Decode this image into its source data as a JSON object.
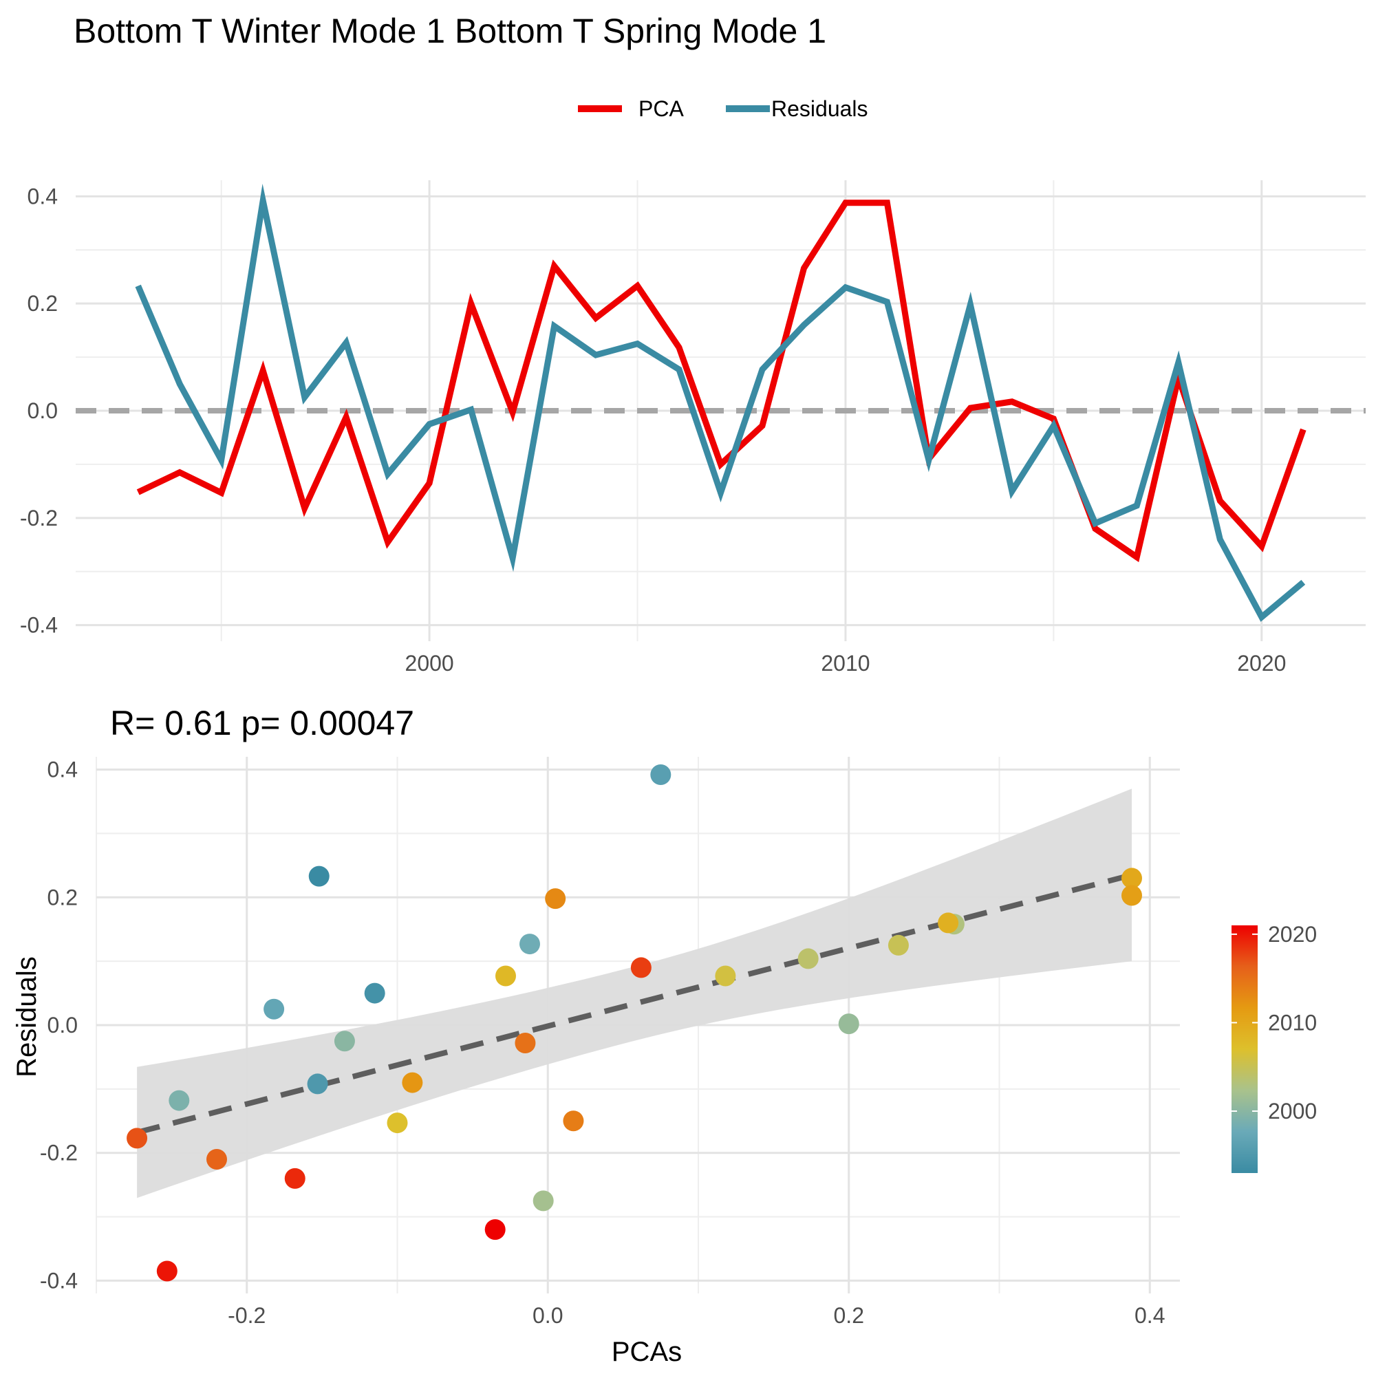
{
  "figure": {
    "title": "Bottom T Winter Mode 1 Bottom T Spring Mode 1"
  },
  "chart_data": [
    {
      "type": "line",
      "legend": {
        "position": "top",
        "entries": [
          "PCA",
          "Residuals"
        ]
      },
      "colors": {
        "PCA": "#ee0000",
        "Residuals": "#3a8ba3",
        "zero_line": "#a6a6a6"
      },
      "grid": true,
      "xlim": [
        1991.5,
        2022.5
      ],
      "ylim": [
        -0.43,
        0.43
      ],
      "x_ticks": [
        2000,
        2010,
        2020
      ],
      "x_tick_labels": [
        "2000",
        "2010",
        "2020"
      ],
      "y_ticks": [
        -0.4,
        -0.2,
        0.0,
        0.2,
        0.4
      ],
      "y_tick_labels": [
        "-0.4",
        "-0.2",
        "0.0",
        "0.2",
        "0.4"
      ],
      "hline": 0,
      "x": [
        1993,
        1994,
        1995,
        1996,
        1997,
        1998,
        1999,
        2000,
        2001,
        2002,
        2003,
        2004,
        2005,
        2006,
        2007,
        2008,
        2009,
        2010,
        2011,
        2012,
        2013,
        2014,
        2015,
        2016,
        2017,
        2018,
        2019,
        2020,
        2021
      ],
      "series": [
        {
          "name": "PCA",
          "values": [
            -0.152,
            -0.115,
            -0.153,
            0.075,
            -0.182,
            -0.012,
            -0.245,
            -0.135,
            0.2,
            -0.003,
            0.27,
            0.173,
            0.233,
            0.118,
            -0.1,
            -0.028,
            0.266,
            0.388,
            0.388,
            -0.09,
            0.005,
            0.017,
            -0.015,
            -0.22,
            -0.273,
            0.062,
            -0.168,
            -0.253,
            -0.035
          ]
        },
        {
          "name": "Residuals",
          "values": [
            0.233,
            0.05,
            -0.092,
            0.392,
            0.025,
            0.127,
            -0.118,
            -0.025,
            0.002,
            -0.275,
            0.158,
            0.104,
            0.125,
            0.077,
            -0.153,
            0.077,
            0.16,
            0.23,
            0.203,
            -0.092,
            0.198,
            -0.15,
            -0.028,
            -0.21,
            -0.177,
            0.09,
            -0.24,
            -0.385,
            -0.32
          ]
        }
      ]
    },
    {
      "type": "scatter",
      "subtitle": "R= 0.61  p= 0.00047",
      "xlabel": "PCAs",
      "ylabel": "Residuals",
      "grid": true,
      "xlim": [
        -0.3,
        0.42
      ],
      "ylim": [
        -0.42,
        0.42
      ],
      "x_ticks": [
        -0.2,
        0.0,
        0.2,
        0.4
      ],
      "x_tick_labels": [
        "-0.2",
        "0.0",
        "0.2",
        "0.4"
      ],
      "y_ticks": [
        -0.4,
        -0.2,
        0.0,
        0.2,
        0.4
      ],
      "y_tick_labels": [
        "-0.4",
        "-0.2",
        "0.0",
        "0.2",
        "0.4"
      ],
      "colorbar": {
        "title": "",
        "range": [
          1993,
          2021
        ],
        "ticks": [
          2000,
          2010,
          2020
        ],
        "tick_labels": [
          "2000",
          "2010",
          "2020"
        ],
        "stops": [
          "#3a8ba3",
          "#6aaab8",
          "#a9c28c",
          "#ddc02c",
          "#e59a12",
          "#e6601a",
          "#ee0000"
        ]
      },
      "fit": {
        "x_range": [
          -0.273,
          0.388
        ],
        "y_start": -0.168,
        "y_end": 0.235,
        "band_lower": [
          -0.27,
          0.1
        ],
        "band_upper": [
          -0.065,
          0.37
        ],
        "band_mid": [
          -0.06,
          0.0
        ],
        "line_color": "#5e5e5e",
        "band_color": "#dcdcdc"
      },
      "points": [
        {
          "year": 1993,
          "x": -0.152,
          "y": 0.233
        },
        {
          "year": 1994,
          "x": -0.115,
          "y": 0.05
        },
        {
          "year": 1995,
          "x": -0.153,
          "y": -0.092
        },
        {
          "year": 1996,
          "x": 0.075,
          "y": 0.392
        },
        {
          "year": 1997,
          "x": -0.182,
          "y": 0.025
        },
        {
          "year": 1998,
          "x": -0.012,
          "y": 0.127
        },
        {
          "year": 1999,
          "x": -0.245,
          "y": -0.118
        },
        {
          "year": 2000,
          "x": -0.135,
          "y": -0.025
        },
        {
          "year": 2001,
          "x": 0.2,
          "y": 0.002
        },
        {
          "year": 2002,
          "x": -0.003,
          "y": -0.275
        },
        {
          "year": 2003,
          "x": 0.27,
          "y": 0.158
        },
        {
          "year": 2004,
          "x": 0.173,
          "y": 0.104
        },
        {
          "year": 2005,
          "x": 0.233,
          "y": 0.125
        },
        {
          "year": 2006,
          "x": 0.118,
          "y": 0.077
        },
        {
          "year": 2007,
          "x": -0.1,
          "y": -0.153
        },
        {
          "year": 2008,
          "x": -0.028,
          "y": 0.077
        },
        {
          "year": 2009,
          "x": 0.266,
          "y": 0.16
        },
        {
          "year": 2010,
          "x": 0.388,
          "y": 0.23
        },
        {
          "year": 2011,
          "x": 0.388,
          "y": 0.203
        },
        {
          "year": 2012,
          "x": -0.09,
          "y": -0.09
        },
        {
          "year": 2013,
          "x": 0.005,
          "y": 0.198
        },
        {
          "year": 2014,
          "x": 0.017,
          "y": -0.15
        },
        {
          "year": 2015,
          "x": -0.015,
          "y": -0.028
        },
        {
          "year": 2016,
          "x": -0.22,
          "y": -0.21
        },
        {
          "year": 2017,
          "x": -0.273,
          "y": -0.177
        },
        {
          "year": 2018,
          "x": 0.062,
          "y": 0.09
        },
        {
          "year": 2019,
          "x": -0.168,
          "y": -0.24
        },
        {
          "year": 2020,
          "x": -0.253,
          "y": -0.385
        },
        {
          "year": 2021,
          "x": -0.035,
          "y": -0.32
        }
      ]
    }
  ]
}
